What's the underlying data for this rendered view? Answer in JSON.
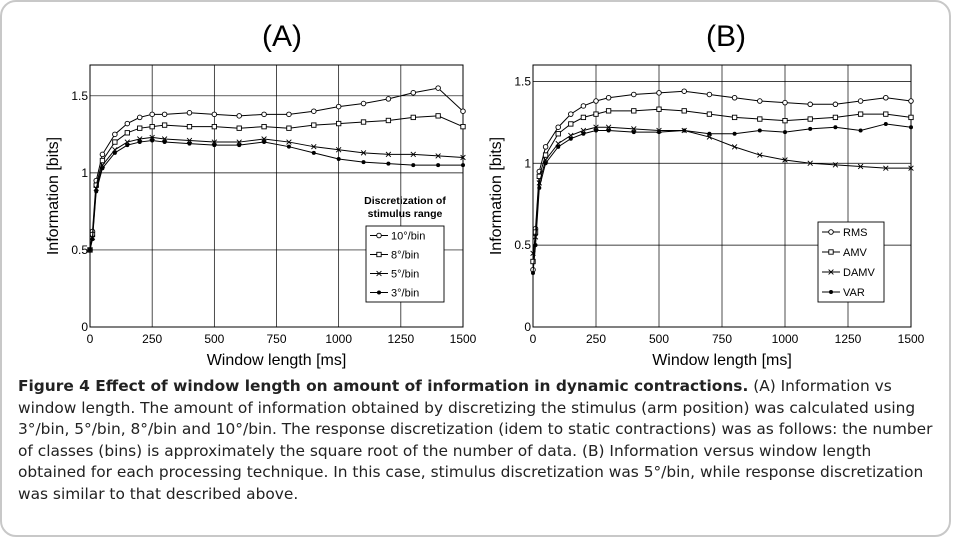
{
  "chart_data": [
    {
      "type": "line",
      "panel_label": "(A)",
      "xlabel": "Window length [ms]",
      "ylabel": "Information [bits]",
      "xlim": [
        0,
        1500
      ],
      "ylim": [
        0,
        1.7
      ],
      "xticks": [
        "0",
        "250",
        "500",
        "750",
        "1000",
        "1250",
        "1500"
      ],
      "yticks": [
        "0",
        "0.5",
        "1",
        "1.5"
      ],
      "grid": true,
      "legend_title": "Discretization of stimulus range",
      "legend_position": "center-right",
      "x": [
        0,
        10,
        25,
        50,
        100,
        150,
        200,
        250,
        300,
        400,
        500,
        600,
        700,
        800,
        900,
        1000,
        1100,
        1200,
        1300,
        1400,
        1500
      ],
      "series": [
        {
          "name": "10°/bin",
          "marker": "circle",
          "values": [
            0.5,
            0.62,
            0.95,
            1.12,
            1.25,
            1.32,
            1.36,
            1.38,
            1.38,
            1.39,
            1.38,
            1.37,
            1.38,
            1.38,
            1.4,
            1.43,
            1.45,
            1.48,
            1.52,
            1.55,
            1.4
          ]
        },
        {
          "name": "8°/bin",
          "marker": "square",
          "values": [
            0.5,
            0.6,
            0.92,
            1.08,
            1.2,
            1.26,
            1.29,
            1.3,
            1.31,
            1.3,
            1.3,
            1.29,
            1.3,
            1.29,
            1.31,
            1.32,
            1.33,
            1.34,
            1.36,
            1.37,
            1.3
          ]
        },
        {
          "name": "5°/bin",
          "marker": "x",
          "values": [
            0.5,
            0.58,
            0.9,
            1.05,
            1.15,
            1.2,
            1.22,
            1.23,
            1.22,
            1.21,
            1.2,
            1.2,
            1.22,
            1.2,
            1.17,
            1.15,
            1.13,
            1.12,
            1.12,
            1.11,
            1.1
          ]
        },
        {
          "name": "3°/bin",
          "marker": "dot",
          "values": [
            0.5,
            0.57,
            0.88,
            1.03,
            1.13,
            1.18,
            1.2,
            1.21,
            1.2,
            1.19,
            1.18,
            1.18,
            1.2,
            1.17,
            1.13,
            1.09,
            1.07,
            1.06,
            1.05,
            1.05,
            1.05
          ]
        }
      ]
    },
    {
      "type": "line",
      "panel_label": "(B)",
      "xlabel": "Window length [ms]",
      "ylabel": "Information [bits]",
      "xlim": [
        0,
        1500
      ],
      "ylim": [
        0,
        1.6
      ],
      "xticks": [
        "0",
        "250",
        "500",
        "750",
        "1000",
        "1250",
        "1500"
      ],
      "yticks": [
        "0",
        "0.5",
        "1",
        "1.5"
      ],
      "grid": true,
      "legend_position": "bottom-right",
      "x": [
        0,
        10,
        25,
        50,
        100,
        150,
        200,
        250,
        300,
        400,
        500,
        600,
        700,
        800,
        900,
        1000,
        1100,
        1200,
        1300,
        1400,
        1500
      ],
      "series": [
        {
          "name": "RMS",
          "marker": "circle",
          "values": [
            0.35,
            0.6,
            0.95,
            1.1,
            1.22,
            1.3,
            1.35,
            1.38,
            1.4,
            1.42,
            1.43,
            1.44,
            1.42,
            1.4,
            1.38,
            1.37,
            1.36,
            1.36,
            1.38,
            1.4,
            1.38
          ]
        },
        {
          "name": "AMV",
          "marker": "square",
          "values": [
            0.4,
            0.58,
            0.92,
            1.05,
            1.18,
            1.24,
            1.28,
            1.3,
            1.32,
            1.32,
            1.33,
            1.32,
            1.3,
            1.28,
            1.27,
            1.26,
            1.27,
            1.28,
            1.3,
            1.3,
            1.28
          ]
        },
        {
          "name": "DAMV",
          "marker": "x",
          "values": [
            0.45,
            0.55,
            0.88,
            1.02,
            1.12,
            1.17,
            1.2,
            1.22,
            1.22,
            1.21,
            1.2,
            1.2,
            1.16,
            1.1,
            1.05,
            1.02,
            1.0,
            0.99,
            0.98,
            0.97,
            0.97
          ]
        },
        {
          "name": "VAR",
          "marker": "dot",
          "values": [
            0.33,
            0.5,
            0.85,
            1.0,
            1.1,
            1.15,
            1.18,
            1.2,
            1.2,
            1.19,
            1.19,
            1.2,
            1.18,
            1.18,
            1.2,
            1.19,
            1.21,
            1.22,
            1.2,
            1.24,
            1.22
          ]
        }
      ]
    }
  ],
  "caption": {
    "title": "Figure 4 Effect of window length on amount of information in dynamic contractions.",
    "body": " (A) Information vs window length. The amount of information obtained by discretizing the stimulus (arm position) was calculated using 3°/bin, 5°/bin, 8°/bin and 10°/bin. The response discretization (idem to static contractions) was as follows: the number of classes (bins) is approximately the square root of the number of data. (B) Information versus window length obtained for each processing technique. In this case, stimulus discretization was 5°/bin, while response discretization was similar to that described above."
  }
}
